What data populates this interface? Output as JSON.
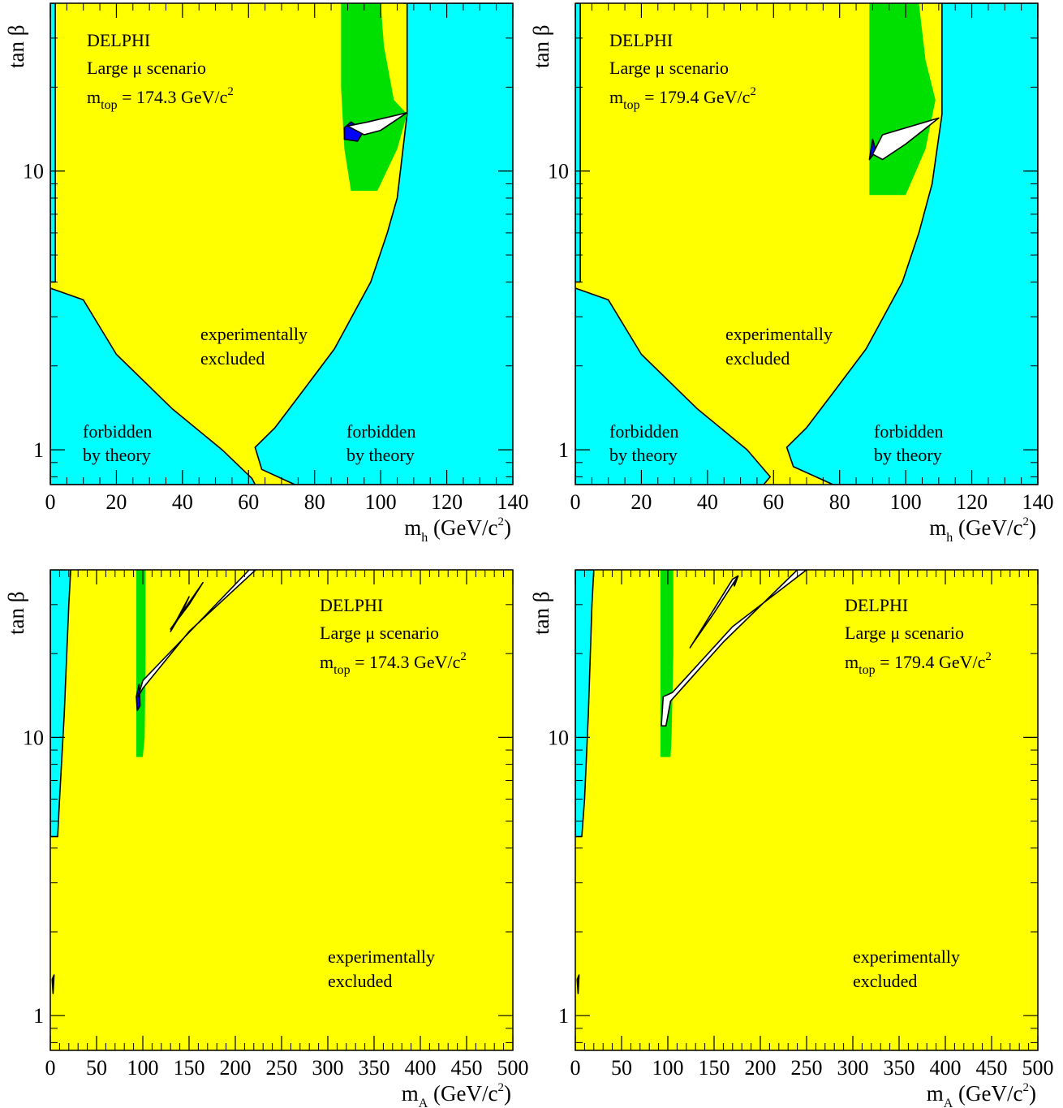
{
  "colors": {
    "allowed": "#00ffff",
    "excluded": "#ffff00",
    "expected_excluded": "#00e000",
    "observed_only": "#0000ff",
    "allowed_region": "#ffffff",
    "small_region": "#800000"
  },
  "chart_data": [
    {
      "type": "contour-region",
      "panel": "top-left",
      "experiment": "DELPHI",
      "scenario": "Large μ scenario",
      "mtop_prefix": "m",
      "mtop_sub": "top",
      "mtop_value": " = 174.3 GeV/c",
      "mtop_sup": "2",
      "xlabel_main": "m",
      "xlabel_sub": "h",
      "xlabel_units": " (GeV/c",
      "xlabel_sup": "2",
      "xlabel_close": ")",
      "ylabel": "tan β",
      "xlim": [
        0,
        140
      ],
      "ylim": [
        0.75,
        40
      ],
      "yscale": "log",
      "x_ticks": [
        "0",
        "20",
        "40",
        "60",
        "80",
        "100",
        "120",
        "140"
      ],
      "y_ticks": [
        "1",
        "10"
      ],
      "annotations": {
        "excluded_line1": "experimentally",
        "excluded_line2": "excluded",
        "forbidden_left_line1": "forbidden",
        "forbidden_left_line2": "by theory",
        "forbidden_right_line1": "forbidden",
        "forbidden_right_line2": "by theory"
      },
      "regions": {
        "theory_forbidden_top": [
          [
            0,
            40
          ],
          [
            1.5,
            40
          ],
          [
            1.5,
            4
          ],
          [
            0,
            4
          ]
        ],
        "theory_forbidden_bottom_left": [
          [
            0,
            0.75
          ],
          [
            0,
            3.8
          ],
          [
            10,
            3.45
          ],
          [
            20,
            2.2
          ],
          [
            37,
            1.4
          ],
          [
            52,
            1.0
          ],
          [
            61,
            0.79
          ],
          [
            62,
            0.75
          ]
        ],
        "theory_forbidden_right": [
          [
            107,
            40
          ],
          [
            108,
            40
          ],
          [
            108,
            16
          ],
          [
            105,
            8
          ],
          [
            102,
            6
          ],
          [
            97,
            4
          ],
          [
            86,
            2.3
          ],
          [
            76,
            1.6
          ],
          [
            68,
            1.2
          ],
          [
            62,
            1.02
          ],
          [
            64,
            0.85
          ],
          [
            74,
            0.75
          ],
          [
            140,
            0.75
          ],
          [
            140,
            40
          ]
        ],
        "expected_excluded": [
          [
            88,
            40
          ],
          [
            100,
            40
          ],
          [
            101,
            28
          ],
          [
            104,
            18
          ],
          [
            108,
            16
          ],
          [
            105,
            12
          ],
          [
            99,
            8.5
          ],
          [
            91,
            8.5
          ],
          [
            89,
            12
          ],
          [
            88,
            20
          ]
        ],
        "observed_only": [
          [
            89,
            14.3
          ],
          [
            91,
            15
          ],
          [
            95,
            14
          ],
          [
            93,
            12.8
          ],
          [
            89,
            13
          ]
        ],
        "allowed": [
          [
            90,
            14.5
          ],
          [
            96,
            15
          ],
          [
            108,
            16.2
          ],
          [
            100,
            14
          ],
          [
            95,
            13.5
          ]
        ]
      }
    },
    {
      "type": "contour-region",
      "panel": "top-right",
      "experiment": "DELPHI",
      "scenario": "Large μ scenario",
      "mtop_prefix": "m",
      "mtop_sub": "top",
      "mtop_value": " = 179.4 GeV/c",
      "mtop_sup": "2",
      "xlabel_main": "m",
      "xlabel_sub": "h",
      "xlabel_units": " (GeV/c",
      "xlabel_sup": "2",
      "xlabel_close": ")",
      "ylabel": "tan β",
      "xlim": [
        0,
        140
      ],
      "ylim": [
        0.75,
        40
      ],
      "yscale": "log",
      "x_ticks": [
        "0",
        "20",
        "40",
        "60",
        "80",
        "100",
        "120",
        "140"
      ],
      "y_ticks": [
        "1",
        "10"
      ],
      "annotations": {
        "excluded_line1": "experimentally",
        "excluded_line2": "excluded",
        "forbidden_left_line1": "forbidden",
        "forbidden_left_line2": "by theory",
        "forbidden_right_line1": "forbidden",
        "forbidden_right_line2": "by theory"
      },
      "regions": {
        "theory_forbidden_top": [
          [
            0,
            40
          ],
          [
            1.5,
            40
          ],
          [
            1.5,
            4
          ],
          [
            0,
            4
          ]
        ],
        "theory_forbidden_bottom_left": [
          [
            0,
            0.75
          ],
          [
            0,
            3.8
          ],
          [
            10,
            3.45
          ],
          [
            20,
            2.2
          ],
          [
            37,
            1.4
          ],
          [
            52,
            1.0
          ],
          [
            59,
            0.8
          ],
          [
            57,
            0.75
          ]
        ],
        "theory_forbidden_right": [
          [
            110,
            40
          ],
          [
            111,
            40
          ],
          [
            111,
            16
          ],
          [
            108,
            9
          ],
          [
            104,
            6
          ],
          [
            99,
            4
          ],
          [
            88,
            2.3
          ],
          [
            78,
            1.6
          ],
          [
            70,
            1.2
          ],
          [
            64,
            1.02
          ],
          [
            66,
            0.87
          ],
          [
            78,
            0.75
          ],
          [
            140,
            0.75
          ],
          [
            140,
            40
          ]
        ],
        "expected_excluded": [
          [
            89,
            40
          ],
          [
            104,
            40
          ],
          [
            106,
            25
          ],
          [
            109,
            18
          ],
          [
            106,
            12
          ],
          [
            100,
            8.2
          ],
          [
            89,
            8.2
          ],
          [
            89,
            15
          ],
          [
            89,
            25
          ]
        ],
        "observed_only": [
          [
            89,
            11
          ],
          [
            90,
            13
          ],
          [
            91,
            11.8
          ]
        ],
        "allowed": [
          [
            90,
            11.5
          ],
          [
            93,
            13.5
          ],
          [
            110,
            15.5
          ],
          [
            100,
            12.5
          ],
          [
            93,
            11
          ]
        ]
      }
    },
    {
      "type": "contour-region",
      "panel": "bottom-left",
      "experiment": "DELPHI",
      "scenario": "Large μ scenario",
      "mtop_prefix": "m",
      "mtop_sub": "top",
      "mtop_value": " = 174.3 GeV/c",
      "mtop_sup": "2",
      "xlabel_main": "m",
      "xlabel_sub": "A",
      "xlabel_units": " (GeV/c",
      "xlabel_sup": "2",
      "xlabel_close": ")",
      "ylabel": "tan β",
      "xlim": [
        0,
        500
      ],
      "ylim": [
        0.75,
        40
      ],
      "yscale": "log",
      "x_ticks": [
        "0",
        "50",
        "100",
        "150",
        "200",
        "250",
        "300",
        "350",
        "400",
        "450",
        "500"
      ],
      "y_ticks": [
        "1",
        "10"
      ],
      "annotations": {
        "excluded_line1": "experimentally",
        "excluded_line2": "excluded"
      },
      "regions": {
        "theory_forbidden_top": [
          [
            0,
            40
          ],
          [
            22,
            40
          ],
          [
            20,
            30
          ],
          [
            15,
            12
          ],
          [
            10,
            6
          ],
          [
            8,
            4.4
          ],
          [
            0,
            4.4
          ]
        ],
        "expected_excluded": [
          [
            93,
            40
          ],
          [
            103,
            40
          ],
          [
            103,
            20
          ],
          [
            102,
            10
          ],
          [
            100,
            8.5
          ],
          [
            93,
            8.5
          ],
          [
            93,
            15
          ]
        ],
        "observed_only": [
          [
            93,
            14
          ],
          [
            96,
            15.5
          ],
          [
            97,
            13
          ],
          [
            94,
            12.5
          ]
        ],
        "observed_only_2": [
          [
            130,
            24
          ],
          [
            150,
            32
          ],
          [
            142,
            28
          ]
        ],
        "allowed": [
          [
            95,
            14
          ],
          [
            100,
            15
          ],
          [
            150,
            24
          ],
          [
            222,
            40
          ],
          [
            215,
            40
          ],
          [
            140,
            22
          ],
          [
            100,
            16
          ]
        ],
        "allowed_2": [
          [
            130,
            24.5
          ],
          [
            165,
            36
          ],
          [
            150,
            30
          ]
        ],
        "small_region": [
          [
            2,
            1.35
          ],
          [
            4,
            1.4
          ],
          [
            3,
            1.2
          ]
        ]
      }
    },
    {
      "type": "contour-region",
      "panel": "bottom-right",
      "experiment": "DELPHI",
      "scenario": "Large μ scenario",
      "mtop_prefix": "m",
      "mtop_sub": "top",
      "mtop_value": " = 179.4 GeV/c",
      "mtop_sup": "2",
      "xlabel_main": "m",
      "xlabel_sub": "A",
      "xlabel_units": " (GeV/c",
      "xlabel_sup": "2",
      "xlabel_close": ")",
      "ylabel": "tan β",
      "xlim": [
        0,
        500
      ],
      "ylim": [
        0.75,
        40
      ],
      "yscale": "log",
      "x_ticks": [
        "0",
        "50",
        "100",
        "150",
        "200",
        "250",
        "300",
        "350",
        "400",
        "450",
        "500"
      ],
      "y_ticks": [
        "1",
        "10"
      ],
      "annotations": {
        "excluded_line1": "experimentally",
        "excluded_line2": "excluded"
      },
      "regions": {
        "theory_forbidden_top": [
          [
            0,
            40
          ],
          [
            20,
            40
          ],
          [
            18,
            30
          ],
          [
            14,
            12
          ],
          [
            10,
            6
          ],
          [
            7,
            4.4
          ],
          [
            0,
            4.4
          ]
        ],
        "expected_excluded": [
          [
            92,
            40
          ],
          [
            106,
            40
          ],
          [
            106,
            20
          ],
          [
            104,
            10
          ],
          [
            103,
            8.5
          ],
          [
            92,
            8.5
          ],
          [
            92,
            15
          ]
        ],
        "observed_only": [
          [
            170,
            37
          ],
          [
            176,
            38
          ],
          [
            172,
            35
          ]
        ],
        "allowed": [
          [
            93,
            11
          ],
          [
            95,
            14
          ],
          [
            105,
            14.5
          ],
          [
            170,
            25
          ],
          [
            250,
            40
          ],
          [
            240,
            40
          ],
          [
            160,
            22
          ],
          [
            103,
            13.5
          ],
          [
            98,
            11
          ]
        ],
        "allowed_2": [
          [
            124,
            21
          ],
          [
            170,
            37
          ],
          [
            176,
            38
          ],
          [
            150,
            28
          ],
          [
            128,
            22
          ]
        ],
        "small_region": [
          [
            2,
            1.35
          ],
          [
            4,
            1.4
          ],
          [
            3,
            1.2
          ]
        ]
      }
    }
  ]
}
